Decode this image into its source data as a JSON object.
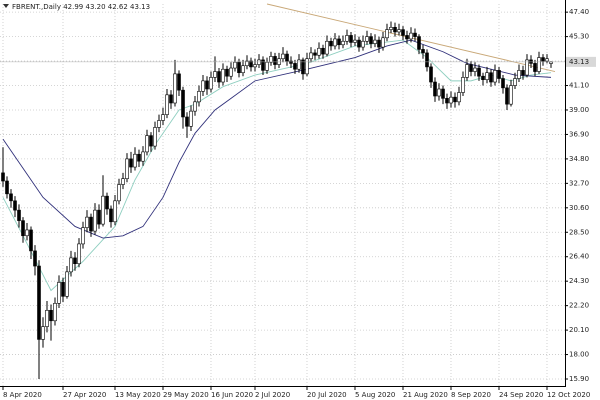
{
  "chart_data": {
    "type": "candlestick",
    "title": "FBRENT.,Daily",
    "ohlc_labels": [
      "42.99",
      "43.20",
      "42.62",
      "43.13"
    ],
    "categories": [
      "8 Apr 2020",
      null,
      null,
      null,
      null,
      null,
      null,
      null,
      null,
      null,
      null,
      null,
      null,
      null,
      null,
      "27 Apr 2020",
      null,
      null,
      null,
      null,
      null,
      null,
      null,
      null,
      null,
      null,
      null,
      null,
      "13 May 2020",
      null,
      null,
      null,
      null,
      null,
      null,
      null,
      null,
      null,
      null,
      null,
      "29 May 2020",
      null,
      null,
      null,
      null,
      null,
      null,
      null,
      null,
      null,
      null,
      null,
      "16 Jun 2020",
      null,
      null,
      null,
      null,
      null,
      null,
      null,
      null,
      null,
      null,
      "2 Jul 2020",
      null,
      null,
      null,
      null,
      null,
      null,
      null,
      null,
      null,
      null,
      null,
      null,
      "20 Jul 2020",
      null,
      null,
      null,
      null,
      null,
      null,
      null,
      null,
      null,
      null,
      null,
      "5 Aug 2020",
      null,
      null,
      null,
      null,
      null,
      null,
      null,
      null,
      null,
      null,
      null,
      "21 Aug 2020",
      null,
      null,
      null,
      null,
      null,
      null,
      null,
      null,
      null,
      null,
      null,
      "8 Sep 2020",
      null,
      null,
      null,
      null,
      null,
      null,
      null,
      null,
      null,
      null,
      null,
      "24 Sep 2020",
      null,
      null,
      null,
      null,
      null,
      null,
      null,
      null,
      null,
      null,
      null,
      "12 Oct 2020",
      null
    ],
    "open": [
      33.6,
      32.9,
      31.8,
      31.2,
      30.4,
      29.5,
      28.2,
      28.7,
      26.9,
      25.6,
      19.3,
      20.4,
      21.8,
      20.9,
      22.4,
      24.2,
      23.0,
      25.1,
      26.3,
      25.8,
      27.5,
      28.9,
      29.8,
      28.6,
      30.4,
      29.2,
      31.6,
      30.5,
      29.4,
      31.2,
      32.6,
      33.1,
      34.8,
      34.1,
      35.2,
      34.6,
      35.4,
      36.8,
      35.9,
      37.5,
      38.1,
      38.6,
      40.3,
      39.6,
      42.1,
      40.7,
      38.4,
      37.6,
      38.9,
      39.7,
      40.6,
      41.5,
      40.8,
      41.8,
      42.3,
      41.4,
      42.5,
      41.9,
      42.6,
      43.1,
      42.2,
      42.8,
      43.2,
      42.7,
      42.9,
      43.3,
      42.4,
      43.1,
      43.6,
      42.9,
      43.4,
      43.8,
      43.2,
      43.0,
      42.5,
      43.3,
      42.1,
      43.4,
      43.9,
      43.7,
      44.3,
      43.8,
      44.9,
      44.5,
      45.1,
      44.6,
      44.9,
      45.4,
      44.8,
      45.0,
      44.4,
      44.9,
      45.3,
      44.7,
      45.0,
      44.4,
      45.2,
      45.9,
      46.1,
      45.7,
      45.9,
      45.4,
      45.1,
      45.6,
      45.3,
      44.2,
      43.9,
      42.7,
      41.4,
      40.2,
      40.8,
      40.0,
      39.6,
      40.1,
      39.7,
      40.5,
      41.8,
      42.9,
      42.3,
      42.6,
      41.9,
      41.6,
      42.2,
      41.4,
      42.4,
      41.7,
      40.9,
      39.5,
      41.1,
      41.7,
      42.4,
      42.0,
      43.3,
      43.0,
      42.3,
      43.5,
      43.2,
      42.99
    ],
    "high": [
      35.8,
      33.3,
      32.2,
      31.6,
      30.9,
      29.8,
      29.3,
      29.0,
      27.4,
      26.1,
      21.2,
      22.6,
      22.3,
      22.9,
      24.8,
      24.6,
      25.6,
      26.9,
      26.8,
      28.0,
      29.4,
      30.4,
      30.1,
      31.0,
      30.9,
      33.4,
      31.9,
      30.8,
      31.7,
      33.1,
      33.6,
      35.3,
      35.4,
      35.8,
      35.6,
      35.9,
      37.3,
      37.1,
      38.0,
      38.6,
      39.2,
      40.8,
      40.7,
      43.3,
      42.4,
      41.0,
      38.8,
      39.4,
      40.2,
      41.1,
      42.0,
      41.9,
      42.3,
      43.6,
      42.6,
      43.0,
      42.8,
      43.1,
      43.6,
      43.4,
      43.3,
      43.7,
      43.5,
      43.4,
      43.8,
      43.6,
      43.5,
      44.0,
      43.9,
      43.9,
      44.4,
      44.1,
      43.6,
      43.3,
      43.8,
      43.5,
      43.9,
      44.4,
      44.2,
      44.8,
      44.6,
      45.4,
      45.2,
      45.6,
      45.4,
      45.4,
      45.9,
      45.7,
      45.5,
      45.3,
      45.4,
      45.8,
      45.6,
      45.5,
      45.3,
      45.7,
      46.4,
      46.6,
      46.5,
      46.4,
      46.2,
      45.8,
      46.1,
      46.0,
      45.5,
      44.6,
      44.2,
      43.0,
      41.8,
      41.3,
      41.1,
      40.4,
      40.6,
      40.5,
      41.0,
      42.3,
      43.4,
      43.2,
      43.1,
      42.9,
      42.2,
      42.7,
      42.5,
      42.9,
      42.7,
      42.0,
      41.2,
      41.6,
      42.2,
      42.9,
      42.8,
      43.8,
      43.7,
      43.3,
      44.0,
      43.8,
      43.8,
      43.2
    ],
    "low": [
      32.4,
      31.4,
      30.6,
      29.8,
      28.9,
      27.6,
      27.8,
      26.2,
      24.8,
      15.9,
      18.6,
      19.9,
      19.2,
      20.5,
      22.0,
      22.5,
      22.8,
      24.7,
      25.2,
      25.5,
      27.1,
      28.5,
      28.1,
      28.3,
      28.8,
      29.0,
      30.0,
      28.9,
      29.1,
      30.9,
      32.2,
      32.8,
      33.6,
      33.8,
      34.1,
      34.2,
      35.1,
      35.4,
      35.6,
      37.1,
      37.7,
      38.3,
      39.1,
      39.3,
      40.2,
      37.4,
      36.6,
      37.2,
      38.5,
      39.3,
      40.2,
      40.3,
      40.5,
      41.4,
      40.9,
      41.1,
      41.4,
      41.6,
      42.3,
      41.8,
      41.9,
      42.5,
      42.3,
      42.3,
      42.6,
      42.0,
      42.1,
      42.8,
      42.5,
      42.6,
      43.1,
      42.8,
      42.6,
      42.1,
      42.2,
      41.6,
      41.9,
      43.1,
      43.3,
      43.4,
      43.4,
      43.6,
      44.1,
      44.2,
      44.2,
      44.3,
      44.6,
      44.4,
      44.5,
      44.0,
      44.1,
      44.6,
      44.3,
      44.4,
      43.9,
      44.1,
      44.9,
      45.6,
      45.3,
      45.4,
      45.0,
      44.7,
      44.8,
      44.9,
      43.8,
      43.4,
      42.3,
      40.9,
      39.7,
      39.8,
      39.5,
      39.1,
      39.2,
      39.2,
      39.4,
      40.2,
      41.5,
      41.9,
      41.9,
      41.5,
      41.1,
      41.3,
      41.0,
      41.1,
      41.3,
      40.4,
      39.0,
      39.3,
      40.8,
      41.4,
      41.6,
      41.8,
      42.6,
      41.9,
      42.1,
      42.8,
      43.0,
      42.62
    ],
    "close": [
      32.9,
      31.8,
      31.2,
      30.4,
      29.5,
      28.2,
      28.7,
      26.9,
      25.6,
      19.3,
      20.4,
      21.8,
      20.9,
      22.4,
      24.2,
      23.0,
      25.1,
      26.3,
      25.8,
      27.5,
      28.9,
      29.8,
      28.6,
      30.4,
      29.2,
      31.6,
      30.5,
      29.4,
      31.2,
      32.6,
      33.1,
      34.8,
      34.1,
      35.2,
      34.6,
      35.4,
      36.8,
      35.9,
      37.5,
      38.1,
      38.6,
      40.3,
      39.6,
      42.1,
      40.7,
      38.4,
      37.6,
      38.9,
      39.7,
      40.6,
      41.5,
      40.8,
      41.8,
      42.3,
      41.4,
      42.5,
      41.9,
      42.6,
      43.1,
      42.2,
      42.8,
      43.2,
      42.7,
      42.9,
      43.3,
      42.4,
      43.1,
      43.6,
      42.9,
      43.4,
      43.8,
      43.2,
      43.0,
      42.5,
      43.3,
      42.1,
      43.4,
      43.9,
      43.7,
      44.3,
      43.8,
      44.9,
      44.5,
      45.1,
      44.6,
      44.9,
      45.4,
      44.8,
      45.0,
      44.4,
      44.9,
      45.3,
      44.7,
      45.0,
      44.4,
      45.2,
      45.9,
      46.1,
      45.7,
      45.9,
      45.4,
      45.1,
      45.6,
      45.3,
      44.2,
      43.9,
      42.7,
      41.4,
      40.2,
      40.8,
      40.0,
      39.6,
      40.1,
      39.7,
      40.5,
      41.8,
      42.9,
      42.3,
      42.6,
      41.9,
      41.6,
      42.2,
      41.4,
      42.4,
      41.7,
      40.9,
      39.5,
      41.1,
      41.7,
      42.4,
      42.0,
      43.3,
      43.0,
      42.3,
      43.5,
      43.2,
      43.4,
      43.13
    ],
    "series": [
      {
        "color": "#8fcfc0",
        "x": [
          0,
          5,
          12,
          20,
          28,
          33,
          38,
          44,
          48,
          55,
          63,
          76,
          88,
          100,
          106,
          112,
          117,
          122,
          127,
          132,
          137
        ],
        "values": [
          31.5,
          28.2,
          23.5,
          26.0,
          29.0,
          33.0,
          36.0,
          39.0,
          39.5,
          41.0,
          42.0,
          43.0,
          44.5,
          45.0,
          43.5,
          41.5,
          41.5,
          42.0,
          41.5,
          42.0,
          42.2
        ]
      },
      {
        "color": "#30307a",
        "x": [
          0,
          10,
          18,
          25,
          30,
          35,
          40,
          44,
          48,
          53,
          57,
          63,
          76,
          88,
          96,
          102,
          110,
          116,
          122,
          128,
          137
        ],
        "values": [
          36.5,
          31.5,
          29.0,
          28.0,
          28.2,
          29.0,
          31.5,
          34.5,
          37.0,
          39.0,
          40.0,
          41.5,
          42.5,
          43.5,
          44.5,
          45.0,
          44.0,
          43.0,
          42.5,
          42.0,
          41.8
        ]
      }
    ],
    "trendline": {
      "color": "#c9a878",
      "x": [
        66,
        138
      ],
      "values": [
        48.1,
        42.3
      ]
    },
    "ylim": [
      15.3,
      48.1
    ],
    "yticks": [
      {
        "value": 15.9,
        "label": "15.90"
      },
      {
        "value": 18.0,
        "label": "18.00"
      },
      {
        "value": 20.1,
        "label": "20.10"
      },
      {
        "value": 22.2,
        "label": "22.20"
      },
      {
        "value": 24.3,
        "label": "24.30"
      },
      {
        "value": 26.4,
        "label": "26.40"
      },
      {
        "value": 28.5,
        "label": "28.50"
      },
      {
        "value": 30.6,
        "label": "30.60"
      },
      {
        "value": 32.7,
        "label": "32.70"
      },
      {
        "value": 34.8,
        "label": "34.80"
      },
      {
        "value": 36.9,
        "label": "36.90"
      },
      {
        "value": 39.0,
        "label": "39.00"
      },
      {
        "value": 41.1,
        "label": "41.10"
      },
      {
        "value": 43.2,
        "label": "43.20"
      },
      {
        "value": 45.3,
        "label": "45.30"
      },
      {
        "value": 47.4,
        "label": "47.40"
      }
    ],
    "grid": true
  }
}
